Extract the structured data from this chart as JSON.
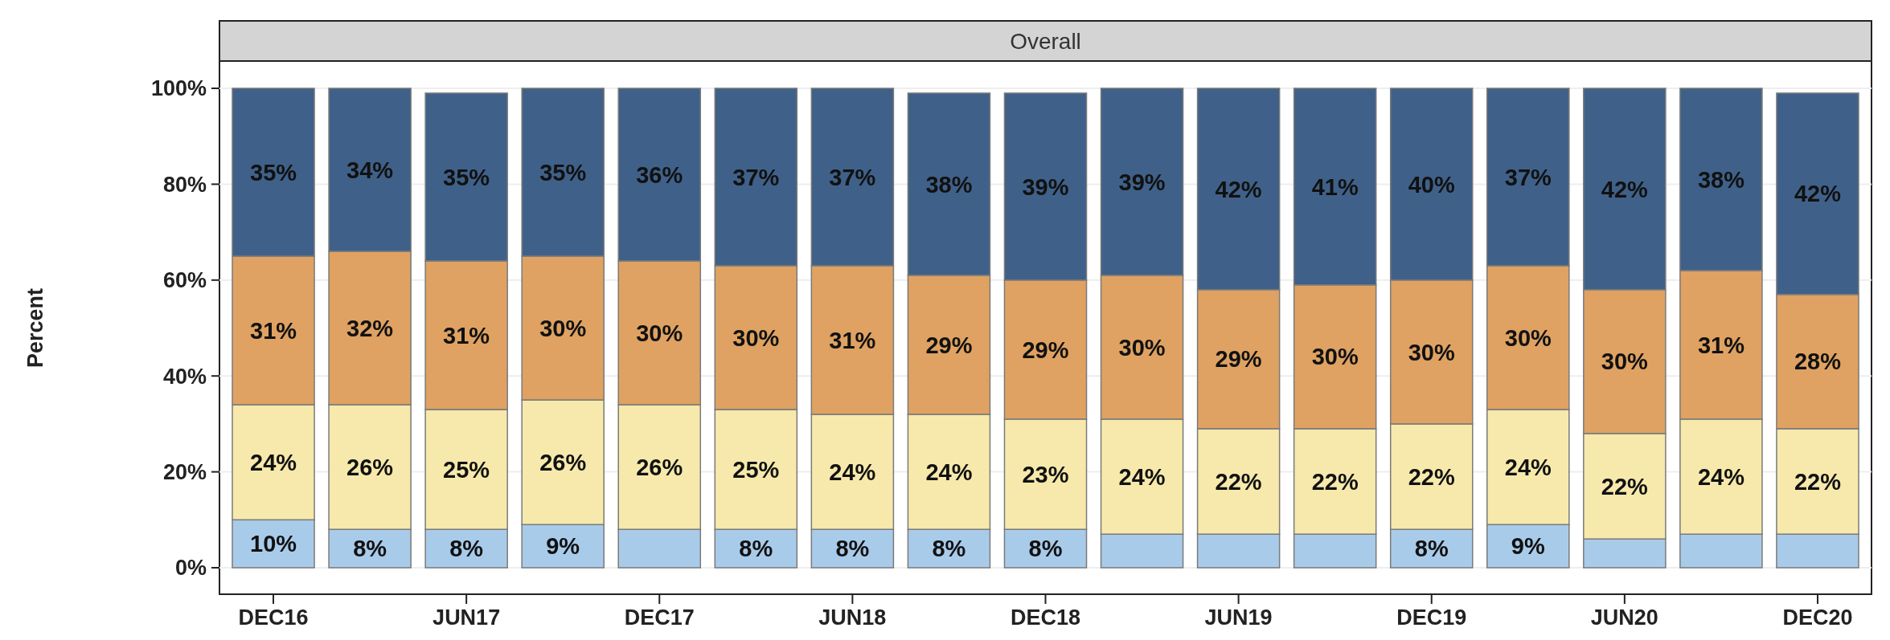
{
  "chart_data": {
    "type": "bar",
    "title": "Overall",
    "ylabel": "Percent",
    "stacked": true,
    "grid": "y",
    "categories": [
      "DEC16",
      null,
      "JUN17",
      null,
      "DEC17",
      null,
      "JUN18",
      null,
      "DEC18",
      null,
      "JUN19",
      null,
      "DEC19",
      null,
      "JUN20",
      null,
      "DEC20"
    ],
    "ylim": [
      0,
      100
    ],
    "yticks": [
      {
        "value": 0,
        "label": "0%"
      },
      {
        "value": 20,
        "label": "20%"
      },
      {
        "value": 40,
        "label": "40%"
      },
      {
        "value": 60,
        "label": "60%"
      },
      {
        "value": 80,
        "label": "80%"
      },
      {
        "value": 100,
        "label": "100%"
      }
    ],
    "series": [
      {
        "color": "#a9cbea",
        "values": [
          10,
          8,
          8,
          9,
          8,
          8,
          8,
          8,
          8,
          7,
          7,
          7,
          8,
          9,
          6,
          7,
          7
        ],
        "value_labels": [
          "10%",
          "8%",
          "8%",
          "9%",
          null,
          "8%",
          "8%",
          "8%",
          "8%",
          null,
          null,
          null,
          "8%",
          "9%",
          null,
          null,
          null
        ]
      },
      {
        "color": "#f6e9ab",
        "values": [
          24,
          26,
          25,
          26,
          26,
          25,
          24,
          24,
          23,
          24,
          22,
          22,
          22,
          24,
          22,
          24,
          22
        ],
        "value_labels": [
          "24%",
          "26%",
          "25%",
          "26%",
          "26%",
          "25%",
          "24%",
          "24%",
          "23%",
          "24%",
          "22%",
          "22%",
          "22%",
          "24%",
          "22%",
          "24%",
          "22%"
        ]
      },
      {
        "color": "#dfa262",
        "values": [
          31,
          32,
          31,
          30,
          30,
          30,
          31,
          29,
          29,
          30,
          29,
          30,
          30,
          30,
          30,
          31,
          28
        ],
        "value_labels": [
          "31%",
          "32%",
          "31%",
          "30%",
          "30%",
          "30%",
          "31%",
          "29%",
          "29%",
          "30%",
          "29%",
          "30%",
          "30%",
          "30%",
          "30%",
          "31%",
          "28%"
        ]
      },
      {
        "color": "#3f6189",
        "values": [
          35,
          34,
          35,
          35,
          36,
          37,
          37,
          38,
          39,
          39,
          42,
          41,
          40,
          37,
          42,
          38,
          42
        ],
        "value_labels": [
          "35%",
          "34%",
          "35%",
          "35%",
          "36%",
          "37%",
          "37%",
          "38%",
          "39%",
          "39%",
          "42%",
          "41%",
          "40%",
          "37%",
          "42%",
          "38%",
          "42%"
        ]
      }
    ]
  }
}
